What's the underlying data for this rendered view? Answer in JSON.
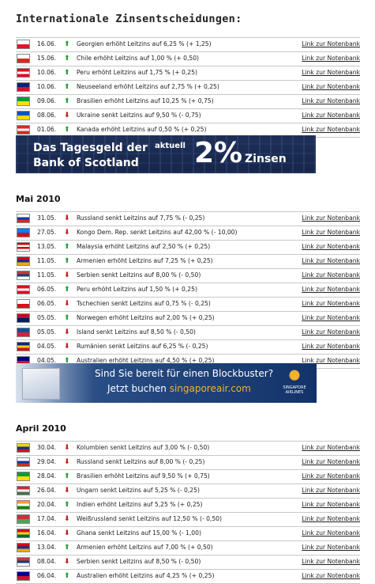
{
  "title": "Internationale Zinsentscheidungen:",
  "link_label": "Link zur Notenbank",
  "banner1": {
    "line1": "Das Tagesgeld der",
    "line2": "Bank of Scotland",
    "aktuell": "aktuell",
    "rate": "2%",
    "zinsen": "Zinsen"
  },
  "banner2": {
    "line1": "Sind Sie bereit für einen Blockbuster?",
    "line2_prefix": "Jetzt buchen ",
    "line2_accent": "singaporeair.com",
    "logo_text": "SINGAPORE AIRLINES"
  },
  "sections": [
    {
      "heading": "",
      "items": [
        {
          "date": "16.06.",
          "dir": "up",
          "text": "Georgien erhöht Leitzins auf 6,25 % (+ 1,25)",
          "flag": "georgia-flag-icon",
          "colors": [
            "#ffffff",
            "#e8112d"
          ]
        },
        {
          "date": "15.06.",
          "dir": "up",
          "text": "Chile erhöht Leitzins auf 1,00 % (+ 0,50)",
          "flag": "chile-flag-icon",
          "colors": [
            "#ffffff",
            "#d52b1e"
          ]
        },
        {
          "date": "10.06.",
          "dir": "up",
          "text": "Peru erhöht Leitzins auf 1,75 % (+ 0,25)",
          "flag": "peru-flag-icon",
          "colors": [
            "#d91023",
            "#ffffff",
            "#d91023"
          ]
        },
        {
          "date": "10.06.",
          "dir": "up",
          "text": "Neuseeland erhöht Leitzins auf 2,75 % (+ 0,25)",
          "flag": "new-zealand-flag-icon",
          "colors": [
            "#00247d",
            "#cc142b"
          ]
        },
        {
          "date": "09.06.",
          "dir": "up",
          "text": "Brasilien erhöht Leitzins auf 10,25 % (+ 0,75)",
          "flag": "brazil-flag-icon",
          "colors": [
            "#009b3a",
            "#fedf00"
          ]
        },
        {
          "date": "08.06.",
          "dir": "down",
          "text": "Ukraine senkt Leitzins auf 9,50 % (- 0,75)",
          "flag": "ukraine-flag-icon",
          "colors": [
            "#0057b7",
            "#ffd700"
          ]
        },
        {
          "date": "01.06.",
          "dir": "up",
          "text": "Kanada erhöht Leitzins auf 0,50 % (+ 0,25)",
          "flag": "canada-flag-icon",
          "colors": [
            "#d52b1e",
            "#ffffff",
            "#d52b1e"
          ]
        }
      ]
    },
    {
      "heading": "Mai 2010",
      "items": [
        {
          "date": "31.05.",
          "dir": "down",
          "text": "Russland senkt Leitzins auf 7,75 % (- 0,25)",
          "flag": "russia-flag-icon",
          "colors": [
            "#ffffff",
            "#0039a6",
            "#d52b1e"
          ]
        },
        {
          "date": "27.05.",
          "dir": "down",
          "text": "Kongo Dem. Rep. senkt Leitzins auf 42,00 % (- 10,00)",
          "flag": "dr-congo-flag-icon",
          "colors": [
            "#007fff",
            "#ce1021"
          ]
        },
        {
          "date": "13.05.",
          "dir": "up",
          "text": "Malaysia erhöht Leitzins auf 2,50 % (+ 0,25)",
          "flag": "malaysia-flag-icon",
          "colors": [
            "#cc0001",
            "#ffffff",
            "#cc0001",
            "#ffffff"
          ]
        },
        {
          "date": "11.05.",
          "dir": "up",
          "text": "Armenien erhöht Leitzins auf 7,25 % (+ 0,25)",
          "flag": "armenia-flag-icon",
          "colors": [
            "#d90012",
            "#0033a0",
            "#f2a800"
          ]
        },
        {
          "date": "11.05.",
          "dir": "down",
          "text": "Serbien senkt Leitzins auf 8,00 % (- 0,50)",
          "flag": "serbia-flag-icon",
          "colors": [
            "#c6363c",
            "#0c4076",
            "#ffffff"
          ]
        },
        {
          "date": "06.05.",
          "dir": "up",
          "text": "Peru erhöht Leitzins auf 1,50 % (+ 0,25)",
          "flag": "peru-flag-icon",
          "colors": [
            "#d91023",
            "#ffffff",
            "#d91023"
          ]
        },
        {
          "date": "06.05.",
          "dir": "down",
          "text": "Tschechien senkt Leitzins auf 0,75 % (- 0,25)",
          "flag": "czech-flag-icon",
          "colors": [
            "#ffffff",
            "#d7141a"
          ]
        },
        {
          "date": "05.05.",
          "dir": "up",
          "text": "Norwegen erhöht Leitzins auf 2,00 % (+ 0,25)",
          "flag": "norway-flag-icon",
          "colors": [
            "#ba0c2f",
            "#00205b"
          ]
        },
        {
          "date": "05.05.",
          "dir": "down",
          "text": "Island senkt Leitzins auf 8,50 % (- 0,50)",
          "flag": "iceland-flag-icon",
          "colors": [
            "#02529c",
            "#dc1e35"
          ]
        },
        {
          "date": "04.05.",
          "dir": "down",
          "text": "Rumänien senkt Leitzins auf 6,25 % (- 0,25)",
          "flag": "romania-flag-icon",
          "colors": [
            "#002b7f",
            "#fcd116",
            "#ce1126"
          ]
        },
        {
          "date": "04.05.",
          "dir": "up",
          "text": "Australien erhöht Leitzins auf 4,50 % (+ 0,25)",
          "flag": "australia-flag-icon",
          "colors": [
            "#00008b",
            "#cc142b"
          ]
        }
      ]
    },
    {
      "heading": "April 2010",
      "items": [
        {
          "date": "30.04.",
          "dir": "down",
          "text": "Kolumbien senkt Leitzins auf 3,00 % (- 0,50)",
          "flag": "colombia-flag-icon",
          "colors": [
            "#fcd116",
            "#003893",
            "#ce1126"
          ]
        },
        {
          "date": "29.04.",
          "dir": "down",
          "text": "Russland senkt Leitzins auf 8,00 % (- 0,25)",
          "flag": "russia-flag-icon",
          "colors": [
            "#ffffff",
            "#0039a6",
            "#d52b1e"
          ]
        },
        {
          "date": "28.04.",
          "dir": "up",
          "text": "Brasilien erhöht Leitzins auf 9,50 % (+ 0,75)",
          "flag": "brazil-flag-icon",
          "colors": [
            "#009b3a",
            "#fedf00"
          ]
        },
        {
          "date": "26.04.",
          "dir": "down",
          "text": "Ungarn senkt Leitzins auf 5,25 % (- 0,25)",
          "flag": "hungary-flag-icon",
          "colors": [
            "#ce2939",
            "#ffffff",
            "#477050"
          ]
        },
        {
          "date": "20.04.",
          "dir": "up",
          "text": "Indien erhöht Leitzins auf 5,25 % (+ 0,25)",
          "flag": "india-flag-icon",
          "colors": [
            "#ff9933",
            "#ffffff",
            "#138808"
          ]
        },
        {
          "date": "17.04.",
          "dir": "down",
          "text": "Weißrussland senkt Leitzins auf 12,50 % (- 0,50)",
          "flag": "belarus-flag-icon",
          "colors": [
            "#c8313e",
            "#4aa657"
          ]
        },
        {
          "date": "16.04.",
          "dir": "down",
          "text": "Ghana senkt Leitzins auf 15,00 % (- 1,00)",
          "flag": "ghana-flag-icon",
          "colors": [
            "#ce1126",
            "#fcd116",
            "#006b3f"
          ]
        },
        {
          "date": "13.04.",
          "dir": "up",
          "text": "Armenien erhöht Leitzins auf 7,00 % (+ 0,50)",
          "flag": "armenia-flag-icon",
          "colors": [
            "#d90012",
            "#0033a0",
            "#f2a800"
          ]
        },
        {
          "date": "08.04.",
          "dir": "down",
          "text": "Serbien senkt Leitzins auf 8,50 % (- 0,50)",
          "flag": "serbia-flag-icon",
          "colors": [
            "#c6363c",
            "#0c4076",
            "#ffffff"
          ]
        },
        {
          "date": "06.04.",
          "dir": "up",
          "text": "Australien erhöht Leitzins auf 4,25 % (+ 0,25)",
          "flag": "australia-flag-icon",
          "colors": [
            "#00008b",
            "#cc142b"
          ]
        }
      ]
    }
  ]
}
